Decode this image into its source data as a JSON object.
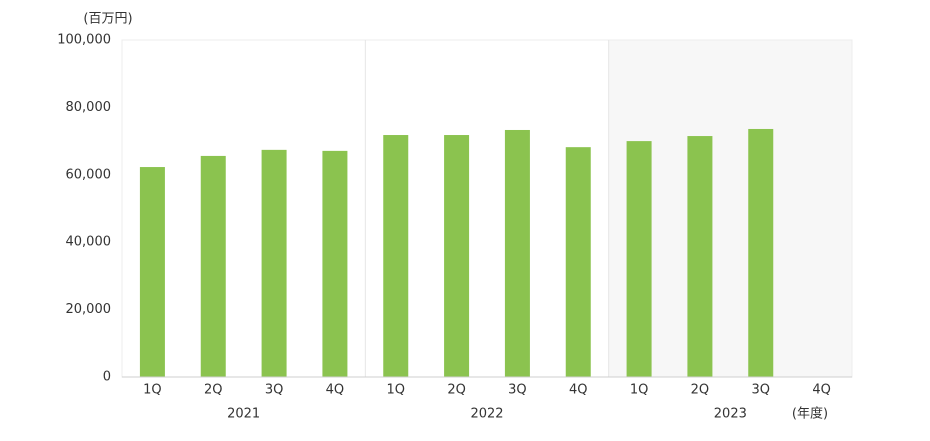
{
  "chart_data": {
    "type": "bar",
    "y_unit_label": "(百万円)",
    "x_unit_label": "(年度)",
    "categories": [
      "1Q",
      "2Q",
      "3Q",
      "4Q",
      "1Q",
      "2Q",
      "3Q",
      "4Q",
      "1Q",
      "2Q",
      "3Q",
      "4Q"
    ],
    "group_labels": [
      "2021",
      "2022",
      "2023"
    ],
    "values": [
      62300,
      65600,
      67400,
      67100,
      71800,
      71800,
      73300,
      68200,
      70000,
      71500,
      73600,
      null
    ],
    "color": "#8bc34f",
    "ylim": [
      0,
      100000
    ],
    "yticks": [
      0,
      {
        "value": 20000,
        "label": "20,000"
      },
      {
        "value": 40000,
        "label": "40,000"
      },
      {
        "value": 60000,
        "label": "60,000"
      },
      {
        "value": 80000,
        "label": "80,000"
      },
      {
        "value": 100000,
        "label": "100,000"
      }
    ],
    "grid": false,
    "shade_last_group": true
  }
}
